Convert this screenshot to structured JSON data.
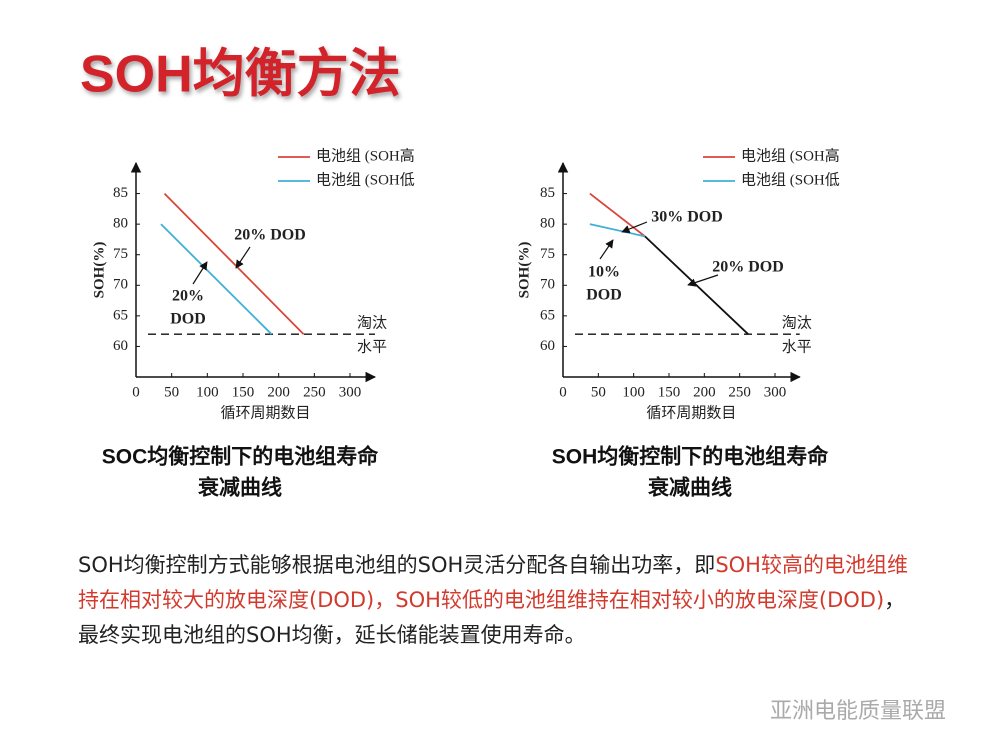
{
  "title": "SOH均衡方法",
  "chart_data": [
    {
      "type": "line",
      "y_label": "SOH(%)",
      "x_label": "循环周期数目",
      "xlim": [
        0,
        335
      ],
      "ylim": [
        55,
        90
      ],
      "xticks": [
        0,
        50,
        100,
        150,
        200,
        250,
        300
      ],
      "yticks": [
        60,
        65,
        70,
        75,
        80,
        85
      ],
      "series": [
        {
          "name": "电池组 (SOH高",
          "color": "#d9453a",
          "x": [
            40,
            235
          ],
          "values": [
            85,
            62
          ]
        },
        {
          "name": "电池组 (SOH低",
          "color": "#3fb0d8",
          "x": [
            35,
            190
          ],
          "values": [
            80,
            62
          ]
        }
      ],
      "hlines": [
        {
          "value": 62,
          "label": [
            "淘汰",
            "水平"
          ]
        }
      ],
      "annotations": [
        [
          "20% DOD"
        ],
        [
          "20%",
          "DOD"
        ]
      ],
      "caption": [
        "SOC均衡控制下的电池组寿命",
        "衰减曲线"
      ]
    },
    {
      "type": "line",
      "y_label": "SOH(%)",
      "x_label": "循环周期数目",
      "xlim": [
        0,
        335
      ],
      "ylim": [
        55,
        90
      ],
      "xticks": [
        0,
        50,
        100,
        150,
        200,
        250,
        300
      ],
      "yticks": [
        60,
        65,
        70,
        75,
        80,
        85
      ],
      "series": [
        {
          "name": "电池组 (SOH高",
          "color": "#d9453a",
          "x": [
            38,
            116
          ],
          "values": [
            85,
            78
          ]
        },
        {
          "name": "电池组 (SOH低",
          "color": "#3fb0d8",
          "x": [
            38,
            116
          ],
          "values": [
            80,
            78
          ]
        },
        {
          "color": "#111111",
          "x": [
            116,
            262
          ],
          "values": [
            78,
            62
          ]
        }
      ],
      "hlines": [
        {
          "value": 62,
          "label": [
            "淘汰",
            "水平"
          ]
        }
      ],
      "annotations": [
        [
          "30% DOD"
        ],
        [
          "10%",
          "DOD"
        ],
        [
          "20% DOD"
        ]
      ],
      "caption": [
        "SOH均衡控制下的电池组寿命",
        "衰减曲线"
      ]
    }
  ],
  "paragraph": {
    "segments": [
      {
        "text": "SOH均衡控制方式能够根据电池组的SOH灵活分配各自输出功率，即",
        "color": "#222222"
      },
      {
        "text": "SOH较高的电池组维持在相对较大的放电深度(DOD)，SOH较低的电池组维持在相对较小的放电深度(DOD)",
        "color": "#d23a2e"
      },
      {
        "text": "，最终实现电池组的SOH均衡，延长储能装置使用寿命。",
        "color": "#222222"
      }
    ]
  },
  "watermark": "亚洲电能质量联盟"
}
